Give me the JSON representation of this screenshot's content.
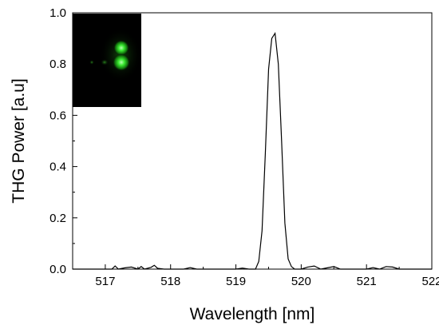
{
  "chart_data": {
    "type": "line",
    "title": "",
    "xlabel": "Wavelength [nm]",
    "ylabel": "THG Power [a.u]",
    "xlim": [
      516.5,
      522
    ],
    "ylim": [
      0,
      1.0
    ],
    "x_ticks": [
      517,
      518,
      519,
      520,
      521,
      522
    ],
    "x_tick_labels": [
      "517",
      "518",
      "519",
      "520",
      "521",
      "522"
    ],
    "y_ticks": [
      0.0,
      0.2,
      0.4,
      0.6,
      0.8,
      1.0
    ],
    "y_tick_labels": [
      "0.0",
      "0.2",
      "0.4",
      "0.6",
      "0.8",
      "1.0"
    ],
    "grid": false,
    "legend": "none",
    "line_color": "#000000",
    "series": [
      {
        "x": [
          516.5,
          516.9,
          517.1,
          517.15,
          517.2,
          517.3,
          517.4,
          517.5,
          517.55,
          517.6,
          517.7,
          517.75,
          517.8,
          517.9,
          518.0,
          518.2,
          518.3,
          518.4,
          518.6,
          518.8,
          519.0,
          519.1,
          519.2,
          519.3,
          519.35,
          519.4,
          519.45,
          519.5,
          519.55,
          519.6,
          519.65,
          519.7,
          519.75,
          519.8,
          519.85,
          519.9,
          520.0,
          520.1,
          520.2,
          520.3,
          520.4,
          520.5,
          520.6,
          520.8,
          521.0,
          521.1,
          521.2,
          521.3,
          521.4,
          521.5,
          521.6,
          522.0
        ],
        "y": [
          0.0,
          0.0,
          0.0,
          0.012,
          0.0,
          0.005,
          0.008,
          0.0,
          0.01,
          0.0,
          0.007,
          0.015,
          0.003,
          0.0,
          0.0,
          0.0,
          0.006,
          0.0,
          0.0,
          0.0,
          0.0,
          0.004,
          0.0,
          0.0,
          0.03,
          0.15,
          0.45,
          0.78,
          0.9,
          0.92,
          0.8,
          0.5,
          0.18,
          0.04,
          0.01,
          0.0,
          0.0,
          0.008,
          0.012,
          0.0,
          0.005,
          0.01,
          0.0,
          0.0,
          0.0,
          0.006,
          0.0,
          0.01,
          0.008,
          0.0,
          0.0,
          0.0
        ]
      }
    ],
    "inset": {
      "content": "green-spot-image",
      "background_color": "#000000",
      "spot_color": "#33ff33"
    }
  }
}
